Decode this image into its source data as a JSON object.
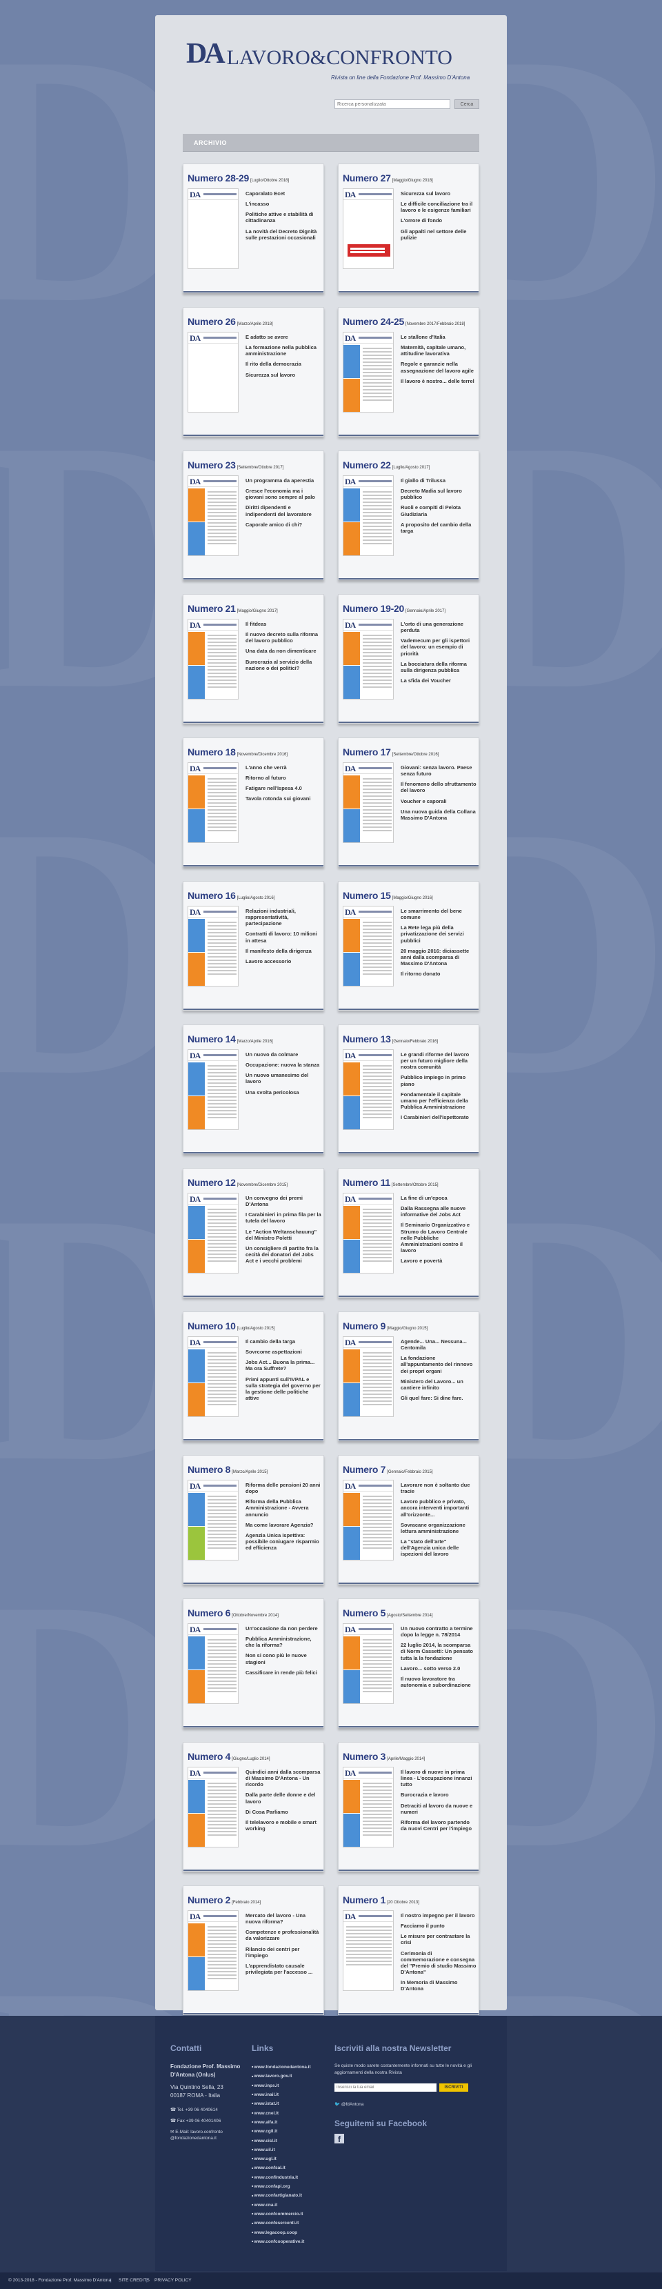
{
  "site": {
    "logo_monogram": "DA",
    "logo_text": "LAVORO&CONFRONTO",
    "tagline": "Rivista on line della Fondazione Prof. Massimo D'Antona"
  },
  "search": {
    "placeholder": "Ricerca personalizzata",
    "button_label": "Cerca"
  },
  "section_title": "ARCHIVIO",
  "issues": [
    {
      "number": "Numero 28-29",
      "date": "[Luglio/Ottobre 2018]",
      "cover": "photo-blue",
      "articles": [
        "Caporalato Ecet",
        "L'incasso",
        "Politiche attive e stabilità di cittadinanza",
        "La novità del Decreto Dignità sulle prestazioni occasionali"
      ]
    },
    {
      "number": "Numero 27",
      "date": "[Maggio/Giugno 2018]",
      "cover": "photo-red",
      "articles": [
        "Sicurezza sul lavoro",
        "Le difficile conciliazione tra il lavoro e le esigenze familiari",
        "L'orrore di fondo",
        "Gli appalti nel settore delle pulizie"
      ]
    },
    {
      "number": "Numero 26",
      "date": "[Marzo/Aprile 2018]",
      "cover": "photo-people",
      "articles": [
        "E adatto se avere",
        "La formazione nella pubblica amministrazione",
        "Il rito della democrazia",
        "Sicurezza sul lavoro"
      ]
    },
    {
      "number": "Numero 24-25",
      "date": "[Novembre 2017/Febbraio 2018]",
      "cover": "blue-orange",
      "articles": [
        "Le stallone d'Italia",
        "Maternità, capitale umano, attitudine lavorativa",
        "Regole e garanzie nella assegnazione del lavoro agile",
        "Il lavoro è nostro... delle terrel"
      ]
    },
    {
      "number": "Numero 23",
      "date": "[Settembre/Ottobre 2017]",
      "cover": "orange-blue",
      "articles": [
        "Un programma da aperestia",
        "Cresce l'economia ma i giovani sono sempre al palo",
        "Diritti dipendenti e indipendenti del lavoratore",
        "Caporale amico di chi?"
      ]
    },
    {
      "number": "Numero 22",
      "date": "[Luglio/Agosto 2017]",
      "cover": "blue-orange",
      "articles": [
        "Il giallo di Trilussa",
        "Decreto Madia sul lavoro pubblico",
        "Ruoli e compiti di Pelota Giudiziaria",
        "A proposito del cambio della targa"
      ]
    },
    {
      "number": "Numero 21",
      "date": "[Maggio/Giugno 2017]",
      "cover": "orange-blue",
      "articles": [
        "Il fitdeas",
        "Il nuovo decreto sulla riforma del lavoro pubblico",
        "Una data da non dimenticare",
        "Burocrazia al servizio della nazione o dei politici?"
      ]
    },
    {
      "number": "Numero 19-20",
      "date": "[Gennaio/Aprile 2017]",
      "cover": "orange-blue",
      "articles": [
        "L'orto di una generazione perduta",
        "Vademecum per gli ispettori del lavoro: un esempio di priorità",
        "La bocciatura della riforma sulla dirigenza pubblica",
        "La sfida dei Voucher"
      ]
    },
    {
      "number": "Numero 18",
      "date": "[Novembre/Dicembre 2016]",
      "cover": "orange-blue",
      "articles": [
        "L'anno che verrà",
        "Ritorno al futuro",
        "Fatigare nell'Ispesa 4.0",
        "Tavola rotonda sui giovani"
      ]
    },
    {
      "number": "Numero 17",
      "date": "[Settembre/Ottobre 2016]",
      "cover": "orange-blue",
      "articles": [
        "Giovani: senza lavoro. Paese senza futuro",
        "Il fenomeno dello sfruttamento del lavoro",
        "Voucher e caporali",
        "Una nuova guida della Collana Massimo D'Antona"
      ]
    },
    {
      "number": "Numero 16",
      "date": "[Luglio/Agosto 2016]",
      "cover": "blue-orange",
      "articles": [
        "Relazioni industriali, rappresentatività, partecipazione",
        "Contratti di lavoro: 10 milioni in attesa",
        "Il manifesto della dirigenza",
        "Lavoro accessorio"
      ]
    },
    {
      "number": "Numero 15",
      "date": "[Maggio/Giugno 2016]",
      "cover": "orange-blue",
      "articles": [
        "Le smarrimento del bene comune",
        "La Rete lega più della privatizzazione dei servizi pubblici",
        "20 maggio 2016: diciassette anni dalla scomparsa di Massimo D'Antona",
        "Il ritorno donato"
      ]
    },
    {
      "number": "Numero 14",
      "date": "[Marzo/Aprile 2016]",
      "cover": "blue-orange",
      "articles": [
        "Un nuovo da colmare",
        "Occupazione: nuova la stanza",
        "Un nuovo umanesimo del lavoro",
        "Una svolta pericolosa"
      ]
    },
    {
      "number": "Numero 13",
      "date": "[Gennaio/Febbraio 2016]",
      "cover": "orange-blue",
      "articles": [
        "Le grandi riforme del lavoro per un futuro migliore della nostra comunità",
        "Pubblico impiego in primo piano",
        "Fondamentale il capitale umano per l'efficienza della Pubblica Amministrazione",
        "I Carabinieri dell'Ispettorato"
      ]
    },
    {
      "number": "Numero 12",
      "date": "[Novembre/Dicembre 2015]",
      "cover": "blue-orange",
      "articles": [
        "Un convegno dei premi D'Antona",
        "I Carabinieri in prima fila per la tutela del lavoro",
        "Le \"Action Weltanschauung\" del Ministro Poletti",
        "Un consigliere di partito fra la cecità dei donatori del Jobs Act e i vecchi problemi"
      ]
    },
    {
      "number": "Numero 11",
      "date": "[Settembre/Ottobre 2015]",
      "cover": "orange-blue",
      "articles": [
        "La fine di un'epoca",
        "Dalla Rassegna alle nuove informative del Jobs Act",
        "Il Seminario Organizzativo e Strumo do Lavoro Centrale nelle Pubbliche Amministrazioni contro il lavoro",
        "Lavoro e povertà"
      ]
    },
    {
      "number": "Numero 10",
      "date": "[Luglio/Agosto 2015]",
      "cover": "blue-orange",
      "articles": [
        "Il cambio della targa",
        "Sovrcome aspettazioni",
        "Jobs Act... Buona la prima... Ma ora Suffrete?",
        "Primi appunti sull'IVPAL e sulla strategia del governo per la gestione delle politiche attive"
      ]
    },
    {
      "number": "Numero 9",
      "date": "[Maggio/Giugno 2015]",
      "cover": "orange-blue",
      "articles": [
        "Agende... Una... Nessuna... Centomila",
        "La fondazione all'appuntamento del rinnovo dei propri organi",
        "Ministero del Lavoro... un cantiere infinito",
        "Gli quel fare: Si dine fare."
      ]
    },
    {
      "number": "Numero 8",
      "date": "[Marzo/Aprile 2015]",
      "cover": "blue-green",
      "articles": [
        "Riforma delle pensioni 20 anni dopo",
        "Riforma della Pubblica Amministrazione - Avvera annuncio",
        "Ma come lavorare Agenzia?",
        "Agenzia Unica Ispettiva: possibile coniugare risparmio ed efficienza"
      ]
    },
    {
      "number": "Numero 7",
      "date": "[Gennaio/Febbraio 2015]",
      "cover": "orange-blue",
      "articles": [
        "Lavorare non è soltanto due tracie",
        "Lavoro pubblico e privato, ancora interventi importanti all'orizzonte...",
        "Sovracane organizzazione lettura amministrazione",
        "La \"stato dell'arte\" dell'Agenzia unica delle ispezioni del lavoro"
      ]
    },
    {
      "number": "Numero 6",
      "date": "[Ottobre/Novembre 2014]",
      "cover": "blue-orange",
      "articles": [
        "Un'occasione da non perdere",
        "Pubblica Amministrazione, che la riforma?",
        "Non si cono più le nuove stagioni",
        "Cassificare in rende più felici"
      ]
    },
    {
      "number": "Numero 5",
      "date": "[Agosto/Settembre 2014]",
      "cover": "orange-blue",
      "articles": [
        "Un nuovo contratto a termine dopo la legge n. 78/2014",
        "22 luglio 2014, la scomparsa di Norm Cassetti: Un pensato tutta la la fondazione",
        "Lavoro... sotto verso 2.0",
        "Il nuovo lavoratore tra autonomia e subordinazione"
      ]
    },
    {
      "number": "Numero 4",
      "date": "[Giugno/Luglio 2014]",
      "cover": "blue-orange",
      "articles": [
        "Quindici anni dalla scomparsa di Massimo D'Antona - Un ricordo",
        "Dalla parte delle donne e del lavoro",
        "Di Cosa Parliamo",
        "Il telelavoro e mobile e smart working"
      ]
    },
    {
      "number": "Numero 3",
      "date": "[Aprile/Maggio 2014]",
      "cover": "orange-blue",
      "articles": [
        "Il lavoro di nuove in prima linea - L'occupazione innanzi tutto",
        "Burocrazia e lavoro",
        "Detraciti al lavoro da nuove e numeri",
        "Riforma del lavoro partendo da nuovi Centri per l'impiego"
      ]
    },
    {
      "number": "Numero 2",
      "date": "[Febbraio 2014]",
      "cover": "orange-blue",
      "articles": [
        "Mercato del lavoro - Una nuova riforma?",
        "Competenze e professionalità da valorizzare",
        "Rilancio dei centri per l'impiego",
        "L'apprendistato causale privilegiata per l'accesso ..."
      ]
    },
    {
      "number": "Numero 1",
      "date": "[20 Ottobre 2013]",
      "cover": "first",
      "articles": [
        "Il nostro impegno per il lavoro",
        "Facciamo il punto",
        "Le misure per contrastare la crisi",
        "Cerimonia di commemorazione e consegna del \"Premio di studio Massimo D'Antona\"",
        "In Memoria di Massimo D'Antona"
      ]
    }
  ],
  "footer": {
    "contacts": {
      "heading": "Contatti",
      "org": "Fondazione Prof. Massimo D'Antona (Onlus)",
      "address": "Via Quintino Sella, 23",
      "city": "00187 ROMA - Italia",
      "tel": "Tel. +39 06 4040614",
      "fax": "Fax +39 06 40401406",
      "email": "E-Mail: lavoro.confronto @fondazionedantona.it"
    },
    "links": {
      "heading": "Links",
      "items": [
        "www.fondazionedantona.it",
        "www.lavoro.gov.it",
        "www.inps.it",
        "www.inail.it",
        "www.istat.it",
        "www.cnel.it",
        "www.aifa.it",
        "www.cgil.it",
        "www.cisl.it",
        "www.uil.it",
        "www.ugl.it",
        "www.confsal.it",
        "www.confindustria.it",
        "www.confapi.org",
        "www.confartigianato.it",
        "www.cna.it",
        "www.confcommercio.it",
        "www.confesercenti.it",
        "www.legacoop.coop",
        "www.confcooperative.it"
      ]
    },
    "newsletter": {
      "heading": "Iscriviti alla nostra Newsletter",
      "text": "Se quiste modo sarete costantemente informati su tutte le novità e gli aggiornamenti della nostra Rivista",
      "placeholder": "Inserisci la tua email",
      "button": "ISCRIVITI",
      "twitter": "@fdAntona",
      "social_heading": "Seguitemi su Facebook"
    },
    "copyright": "© 2013-2018 - Fondazione Prof. Massimo D'Antona",
    "site_map": "SITE CREDITS",
    "privacy": "PRIVACY POLICY"
  }
}
